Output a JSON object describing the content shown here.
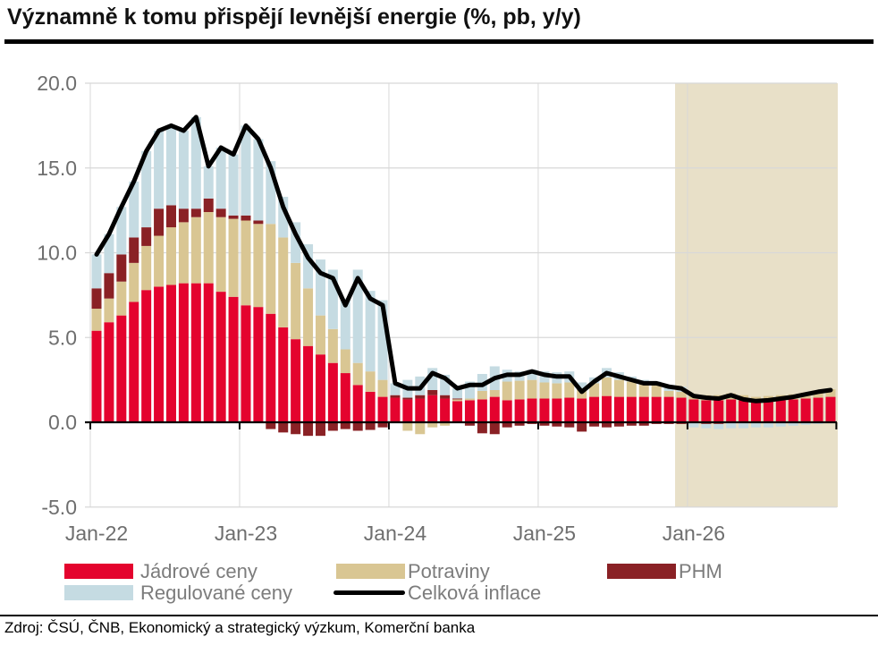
{
  "header": {
    "title": "Významně k tomu přispějí levnější energie (%, pb, y/y)"
  },
  "footer": {
    "source": "Zdroj: ČSÚ, ČNB, Ekonomický a strategický výzkum, Komerční banka"
  },
  "chart_data": {
    "type": "bar",
    "subtype": "stacked-bar-with-line",
    "title": "Významně k tomu přispějí levnější energie (%, pb, y/y)",
    "x_start": "Jan-22",
    "x_frequency": "monthly",
    "x_tick_labels": [
      "Jan-22",
      "Jan-23",
      "Jan-24",
      "Jan-25",
      "Jan-26"
    ],
    "y_tick_labels": [
      "20.0",
      "15.0",
      "10.0",
      "5.0",
      "0.0",
      "-5.0"
    ],
    "y_ticks": [
      20,
      15,
      10,
      5,
      0,
      -5
    ],
    "ylim": [
      -5,
      20
    ],
    "grid": "horizontal-and-yearly-vertical",
    "legend_position": "bottom",
    "forecast_region": {
      "start_month_index": 47,
      "start_between": [
        "Nov-25",
        "Dec-25"
      ],
      "fill": "#e8e0c8"
    },
    "series": [
      {
        "name": "Jádrové ceny",
        "color": "#e4032e",
        "values": [
          5.4,
          5.9,
          6.3,
          7.1,
          7.8,
          8.0,
          8.1,
          8.2,
          8.2,
          8.2,
          7.7,
          7.4,
          6.9,
          6.8,
          6.4,
          5.6,
          4.9,
          4.5,
          4.0,
          3.5,
          2.9,
          2.2,
          1.8,
          1.5,
          1.45,
          1.35,
          1.4,
          1.6,
          1.4,
          1.25,
          1.3,
          1.35,
          1.5,
          1.3,
          1.35,
          1.4,
          1.4,
          1.4,
          1.45,
          1.4,
          1.5,
          1.55,
          1.5,
          1.5,
          1.5,
          1.5,
          1.5,
          1.45,
          1.35,
          1.3,
          1.3,
          1.35,
          1.3,
          1.25,
          1.3,
          1.3,
          1.35,
          1.4,
          1.45,
          1.5
        ]
      },
      {
        "name": "Potraviny",
        "color": "#d9c693",
        "values": [
          1.3,
          1.4,
          2.0,
          2.3,
          2.6,
          3.0,
          3.4,
          3.6,
          3.9,
          4.2,
          4.4,
          4.6,
          5.0,
          4.9,
          5.3,
          5.3,
          4.5,
          3.4,
          2.3,
          2.0,
          1.4,
          1.3,
          1.2,
          1.0,
          0.0,
          -0.5,
          -0.7,
          -0.3,
          -0.2,
          0.1,
          0.1,
          0.5,
          0.4,
          1.1,
          1.1,
          1.1,
          0.95,
          0.9,
          0.9,
          0.6,
          0.8,
          1.1,
          1.0,
          0.9,
          0.8,
          0.7,
          0.35,
          0.35,
          0.3,
          0.3,
          0.3,
          0.35,
          0.3,
          0.25,
          0.25,
          0.3,
          0.3,
          0.35,
          0.4,
          0.45
        ]
      },
      {
        "name": "PHM",
        "color": "#8a2125",
        "values": [
          1.2,
          1.5,
          1.6,
          1.5,
          1.1,
          1.6,
          1.3,
          0.8,
          0.5,
          0.8,
          0.5,
          0.2,
          0.3,
          0.2,
          -0.4,
          -0.6,
          -0.7,
          -0.8,
          -0.8,
          -0.5,
          -0.4,
          -0.5,
          -0.45,
          -0.3,
          0.15,
          0.1,
          0.2,
          0.3,
          0.2,
          0.05,
          -0.2,
          -0.65,
          -0.7,
          -0.3,
          -0.2,
          -0.1,
          -0.2,
          -0.25,
          -0.3,
          -0.55,
          -0.25,
          -0.3,
          -0.25,
          -0.2,
          -0.2,
          -0.1,
          -0.1,
          -0.1,
          -0.05,
          -0.1,
          -0.1,
          -0.05,
          -0.05,
          0,
          0,
          0,
          0,
          0,
          0,
          0
        ]
      },
      {
        "name": "Regulované ceny",
        "color": "#c5dbe2",
        "values": [
          2.0,
          2.3,
          2.8,
          3.3,
          4.5,
          4.6,
          4.7,
          4.6,
          5.4,
          1.9,
          3.6,
          3.6,
          5.3,
          4.8,
          3.7,
          2.4,
          2.4,
          2.6,
          3.3,
          3.5,
          3.0,
          5.5,
          4.75,
          4.7,
          0.7,
          1.05,
          1.1,
          1.3,
          1.2,
          0.6,
          1.0,
          1.0,
          1.4,
          0.7,
          0.55,
          0.6,
          0.65,
          0.65,
          0.65,
          0.35,
          0.35,
          0.55,
          0.45,
          0.3,
          0.2,
          0.2,
          0.35,
          0.3,
          -0.25,
          -0.25,
          -0.3,
          -0.3,
          -0.3,
          -0.3,
          -0.3,
          -0.25,
          -0.2,
          -0.15,
          -0.1,
          -0.05
        ]
      }
    ],
    "line": {
      "name": "Celková inflace",
      "color": "#000000",
      "values": [
        9.9,
        11.1,
        12.7,
        14.2,
        16.0,
        17.2,
        17.5,
        17.2,
        18.0,
        15.1,
        16.2,
        15.8,
        17.5,
        16.7,
        15.0,
        12.7,
        11.1,
        9.7,
        8.8,
        8.5,
        6.9,
        8.5,
        7.3,
        6.9,
        2.3,
        2.0,
        2.0,
        2.9,
        2.6,
        2.0,
        2.2,
        2.2,
        2.6,
        2.8,
        2.8,
        3.0,
        2.8,
        2.7,
        2.7,
        1.8,
        2.4,
        2.9,
        2.7,
        2.5,
        2.3,
        2.3,
        2.1,
        2.0,
        1.55,
        1.45,
        1.4,
        1.6,
        1.35,
        1.25,
        1.3,
        1.4,
        1.5,
        1.65,
        1.8,
        1.9
      ]
    },
    "axis_text_color": "#6e6e6e",
    "gridline_color": "#d8d8d8"
  },
  "legend": {
    "row1": [
      {
        "label": "Jádrové ceny"
      },
      {
        "label": "Potraviny"
      },
      {
        "label": "PHM"
      }
    ],
    "row2": [
      {
        "label": "Regulované ceny"
      },
      {
        "label": "Celková inflace"
      }
    ]
  }
}
